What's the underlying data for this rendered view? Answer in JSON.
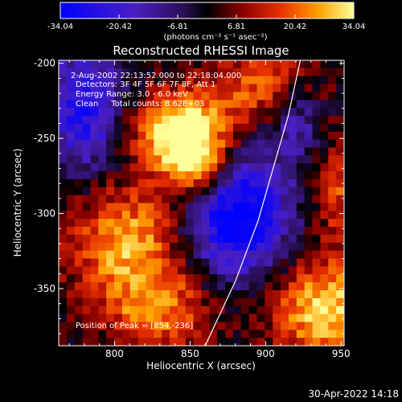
{
  "colorbar": {
    "tick_labels": [
      "-34.04",
      "-20.42",
      "-6.81",
      "6.81",
      "20.42",
      "34.04"
    ],
    "range": [
      -34.04,
      34.04
    ],
    "units": "(photons cm⁻² s⁻¹ asec⁻²)"
  },
  "annotations": {
    "time": "2-Aug-2002 22:13:52.000 to 22:18:04.000",
    "detectors": "Detectors: 3F 4F 5F 6F 7F 8F, Att 1",
    "energy": "Energy Range: 3.0 - 6.0 keV",
    "clean": "Clean     Total counts: 8.62E+03",
    "peak": "Position of Peak = [854,-236]"
  },
  "footer": {
    "timestamp": "30-Apr-2022 14:18"
  },
  "chart_data": {
    "type": "heatmap",
    "title": "Reconstructed RHESSI Image",
    "xlabel": "Heliocentric X (arcsec)",
    "ylabel": "Heliocentric Y (arcsec)",
    "xlim": [
      763,
      952
    ],
    "ylim": [
      -388,
      -198
    ],
    "xticks": [
      800,
      850,
      900,
      950
    ],
    "yticks": [
      -200,
      -250,
      -300,
      -350
    ],
    "zlim": [
      -34.04,
      34.04
    ],
    "limb_curve": [
      [
        860,
        -388
      ],
      [
        880,
        -345
      ],
      [
        895,
        -305
      ],
      [
        905,
        -270
      ],
      [
        915,
        -235
      ],
      [
        923,
        -198
      ]
    ],
    "blobs": [
      {
        "x": 845,
        "y": -245,
        "sx": 22,
        "sy": 18,
        "amp": 40
      },
      {
        "x": 855,
        "y": -270,
        "sx": 15,
        "sy": 15,
        "amp": 30
      },
      {
        "x": 810,
        "y": -320,
        "sx": 28,
        "sy": 28,
        "amp": 28
      },
      {
        "x": 830,
        "y": -365,
        "sx": 25,
        "sy": 18,
        "amp": 20
      },
      {
        "x": 900,
        "y": -215,
        "sx": 25,
        "sy": 18,
        "amp": 20
      },
      {
        "x": 940,
        "y": -365,
        "sx": 25,
        "sy": 25,
        "amp": 32
      },
      {
        "x": 950,
        "y": -285,
        "sx": 12,
        "sy": 25,
        "amp": 18
      },
      {
        "x": 880,
        "y": -300,
        "sx": 25,
        "sy": 30,
        "amp": -38
      },
      {
        "x": 780,
        "y": -230,
        "sx": 18,
        "sy": 30,
        "amp": -28
      },
      {
        "x": 920,
        "y": -235,
        "sx": 12,
        "sy": 18,
        "amp": -18
      }
    ]
  }
}
